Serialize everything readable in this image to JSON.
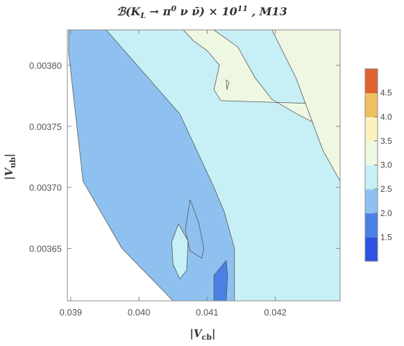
{
  "chart_data": {
    "type": "contour",
    "title": "ℬ(K_L → π⁰ ν ν̄) × 10¹¹ , M13",
    "title_parts": {
      "pre": "ℬ(",
      "K": "K",
      "L_sub": "L",
      "arrow": " → π",
      "zero_sup": "0",
      "nu": " ν ",
      "nubar": "ν̄",
      "post": ") × 10",
      "exp": "11",
      "tail": " , M13"
    },
    "xlabel": {
      "open": "|",
      "V": "V",
      "sub": "cb",
      "close": "|"
    },
    "ylabel": {
      "open": "|",
      "V": "V",
      "sub": "ub",
      "close": "|"
    },
    "xlim": [
      0.03895,
      0.04295
    ],
    "ylim": [
      0.003607,
      0.003829
    ],
    "x_ticks": [
      {
        "value": 0.039,
        "label": "0.039"
      },
      {
        "value": 0.04,
        "label": "0.040"
      },
      {
        "value": 0.041,
        "label": "0.041"
      },
      {
        "value": 0.042,
        "label": "0.042"
      }
    ],
    "y_ticks": [
      {
        "value": 0.00365,
        "label": "0.00365"
      },
      {
        "value": 0.0037,
        "label": "0.00370"
      },
      {
        "value": 0.00375,
        "label": "0.00375"
      },
      {
        "value": 0.0038,
        "label": "0.00380"
      }
    ],
    "colorbar": {
      "range": [
        1.0,
        5.0
      ],
      "levels": [
        1.5,
        2.0,
        2.5,
        3.0,
        3.5,
        4.0,
        4.5
      ],
      "labels": [
        "1.5",
        "2.0",
        "2.5",
        "3.0",
        "3.5",
        "4.0",
        "4.5"
      ],
      "band_colors": [
        "#2e52e3",
        "#4a80e6",
        "#8ec1f0",
        "#c7f0f6",
        "#eef7e2",
        "#fbf2c0",
        "#eec061",
        "#e06330"
      ]
    },
    "regions": [
      {
        "band": "2.0-2.5",
        "color": "#8ec1f0",
        "x": [
          0.03897,
          0.03952,
          0.0406,
          0.0411,
          0.04125,
          0.0414,
          0.0414,
          0.0405,
          0.03975,
          0.03918,
          0.03897
        ],
        "y": [
          0.003829,
          0.003829,
          0.00376,
          0.0037,
          0.00368,
          0.00365,
          0.003607,
          0.003607,
          0.00365,
          0.003705,
          0.00381
        ]
      },
      {
        "band": "3.0-3.5",
        "color": "#eef7e2",
        "x": [
          0.04065,
          0.0411,
          0.04145,
          0.0417,
          0.04195,
          0.04232,
          0.0426,
          0.04295,
          0.04295,
          0.0412,
          0.0411,
          0.04118,
          0.041,
          0.0408,
          0.04065
        ],
        "y": [
          0.003829,
          0.003829,
          0.003815,
          0.00379,
          0.003772,
          0.00376,
          0.003752,
          0.003752,
          0.003768,
          0.003771,
          0.00378,
          0.0038,
          0.003812,
          0.00382,
          0.003829
        ]
      },
      {
        "band": "3.0-3.5",
        "color": "#eef7e2",
        "x": [
          0.04195,
          0.04295,
          0.04295,
          0.0427,
          0.0423,
          0.04195
        ],
        "y": [
          0.003829,
          0.003829,
          0.003705,
          0.00373,
          0.00379,
          0.003829
        ]
      },
      {
        "band": "2.0-2.5",
        "color": "#8ec1f0",
        "x": [
          0.04075,
          0.04088,
          0.04095,
          0.04092,
          0.04075,
          0.04068,
          0.04075
        ],
        "y": [
          0.00369,
          0.00367,
          0.00365,
          0.003642,
          0.003648,
          0.003665,
          0.00369
        ]
      },
      {
        "band": "2.5-3.0",
        "color": "#c7f0f6",
        "x": [
          0.04058,
          0.04072,
          0.0407,
          0.0406,
          0.0405,
          0.04048,
          0.04058
        ],
        "y": [
          0.00367,
          0.003656,
          0.003632,
          0.003625,
          0.003637,
          0.003655,
          0.00367
        ]
      },
      {
        "band": "1.5-2.0",
        "color": "#4a80e6",
        "x": [
          0.0411,
          0.04128,
          0.0413,
          0.04128,
          0.0411,
          0.0411
        ],
        "y": [
          0.003607,
          0.003607,
          0.003628,
          0.00364,
          0.003628,
          0.003607
        ]
      },
      {
        "band": "3.0-3.5",
        "color": "#eef7e2",
        "x": [
          0.04128,
          0.04132,
          0.04129,
          0.04128
        ],
        "y": [
          0.003788,
          0.003786,
          0.00378,
          0.003788
        ]
      }
    ]
  }
}
